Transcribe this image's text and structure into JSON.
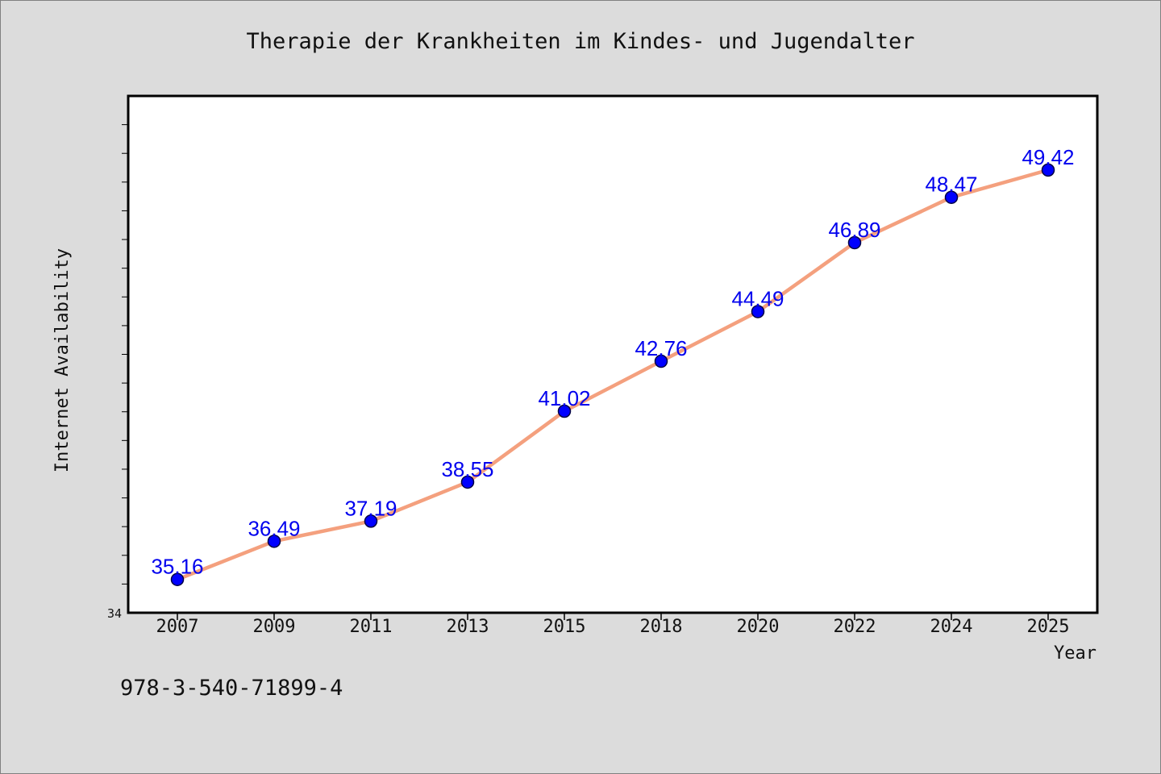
{
  "chart_data": {
    "type": "line",
    "title": "Therapie der Krankheiten im Kindes- und Jugendalter",
    "xlabel": "Year",
    "ylabel": "Internet Availability",
    "categories": [
      "2007",
      "2009",
      "2011",
      "2013",
      "2015",
      "2018",
      "2020",
      "2022",
      "2024",
      "2025"
    ],
    "series": [
      {
        "values": [
          35.16,
          36.49,
          37.19,
          38.55,
          41.02,
          42.76,
          44.49,
          46.89,
          48.47,
          49.42
        ]
      }
    ],
    "data_labels": [
      "35.16",
      "36.49",
      "37.19",
      "38.55",
      "41.02",
      "42.76",
      "44.49",
      "46.89",
      "48.47",
      "49.42"
    ],
    "ylim": [
      34,
      52
    ],
    "y_min_label": "34",
    "grid": false,
    "legend": "none",
    "colors": {
      "line": "#f4a07e",
      "marker_fill": "#0000ff",
      "marker_stroke": "#000044",
      "data_label": "#0000ee",
      "background": "#dcdcdc",
      "plot_background": "#ffffff"
    }
  },
  "footer": {
    "isbn": "978-3-540-71899-4"
  }
}
